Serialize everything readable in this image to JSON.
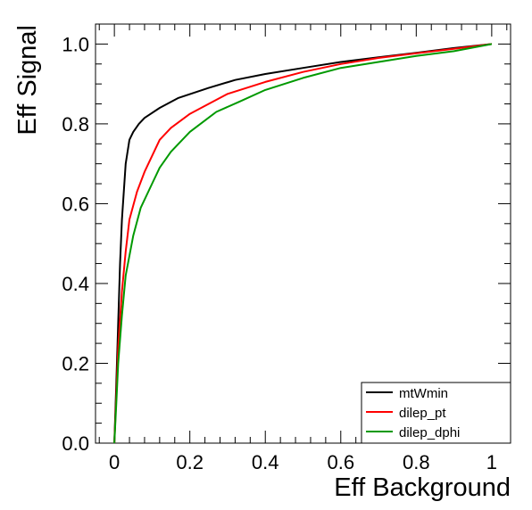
{
  "chart_data": {
    "type": "line",
    "title": "",
    "xlabel": "Eff Background",
    "ylabel": "Eff Signal",
    "xlim": [
      -0.05,
      1.05
    ],
    "ylim": [
      0.0,
      1.05
    ],
    "xticks": [
      0,
      0.2,
      0.4,
      0.6,
      0.8,
      1
    ],
    "xtick_labels": [
      "0",
      "0.2",
      "0.4",
      "0.6",
      "0.8",
      "1"
    ],
    "yticks": [
      0.0,
      0.2,
      0.4,
      0.6,
      0.8,
      1.0
    ],
    "ytick_labels": [
      "0.0",
      "0.2",
      "0.4",
      "0.6",
      "0.8",
      "1.0"
    ],
    "grid": false,
    "legend_position": "bottom-right",
    "series": [
      {
        "name": "mtWmin",
        "color": "#000000",
        "x": [
          0.0,
          0.005,
          0.01,
          0.015,
          0.02,
          0.03,
          0.04,
          0.05,
          0.065,
          0.08,
          0.12,
          0.17,
          0.25,
          0.32,
          0.4,
          0.5,
          0.6,
          0.7,
          0.8,
          0.9,
          1.0
        ],
        "y": [
          0.0,
          0.15,
          0.3,
          0.45,
          0.56,
          0.7,
          0.76,
          0.78,
          0.8,
          0.815,
          0.84,
          0.865,
          0.89,
          0.91,
          0.925,
          0.94,
          0.955,
          0.967,
          0.978,
          0.99,
          1.0
        ]
      },
      {
        "name": "dilep_pt",
        "color": "#ff0000",
        "x": [
          0.0,
          0.005,
          0.01,
          0.02,
          0.03,
          0.04,
          0.06,
          0.08,
          0.12,
          0.15,
          0.2,
          0.25,
          0.3,
          0.4,
          0.5,
          0.6,
          0.7,
          0.8,
          0.9,
          1.0
        ],
        "y": [
          0.0,
          0.12,
          0.24,
          0.38,
          0.48,
          0.56,
          0.63,
          0.68,
          0.76,
          0.79,
          0.825,
          0.85,
          0.875,
          0.905,
          0.93,
          0.95,
          0.965,
          0.977,
          0.988,
          1.0
        ]
      },
      {
        "name": "dilep_dphi",
        "color": "#009900",
        "x": [
          0.0,
          0.005,
          0.01,
          0.02,
          0.03,
          0.05,
          0.07,
          0.1,
          0.12,
          0.15,
          0.2,
          0.27,
          0.33,
          0.4,
          0.5,
          0.6,
          0.7,
          0.8,
          0.9,
          1.0
        ],
        "y": [
          0.0,
          0.1,
          0.2,
          0.32,
          0.42,
          0.52,
          0.59,
          0.65,
          0.69,
          0.73,
          0.78,
          0.83,
          0.855,
          0.885,
          0.915,
          0.94,
          0.955,
          0.97,
          0.982,
          1.0
        ]
      }
    ]
  }
}
